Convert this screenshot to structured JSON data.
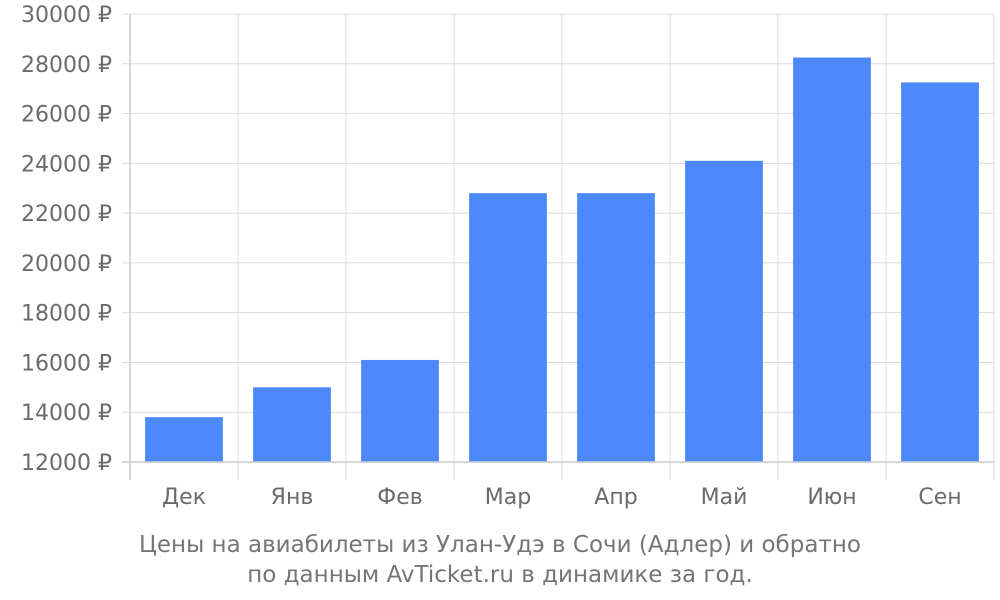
{
  "chart_data": {
    "type": "bar",
    "categories": [
      "Дек",
      "Янв",
      "Фев",
      "Мар",
      "Апр",
      "Май",
      "Июн",
      "Сен"
    ],
    "values": [
      13800,
      15000,
      16100,
      22800,
      22800,
      24100,
      28250,
      27250
    ],
    "ylim": [
      12000,
      30000
    ],
    "yticks": [
      12000,
      14000,
      16000,
      18000,
      20000,
      22000,
      24000,
      26000,
      28000,
      30000
    ],
    "ytick_suffix": " ₽",
    "grid": true,
    "bar_color": "#4b89fa",
    "title_line1": "Цены на авиабилеты из Улан-Удэ в Сочи (Адлер) и обратно",
    "title_line2": "по данным AvTicket.ru в динамике за год."
  }
}
